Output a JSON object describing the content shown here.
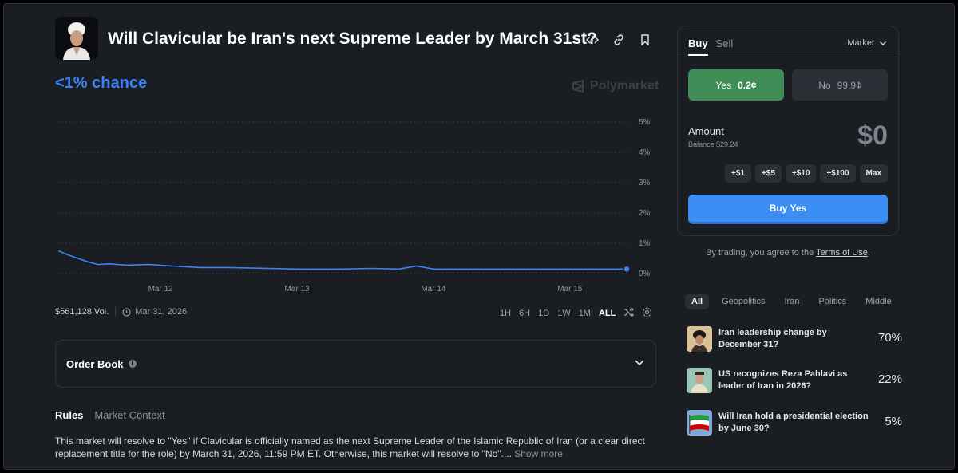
{
  "market": {
    "title": "Will Clavicular be Iran's next Supreme Leader by March 31st?",
    "chance": "<1% chance",
    "brand": "Polymarket",
    "volume": "$561,128 Vol.",
    "end_date": "Mar 31, 2026"
  },
  "chart_data": {
    "type": "line",
    "x_ticks": [
      "Mar 12",
      "Mar 13",
      "Mar 14",
      "Mar 15"
    ],
    "y_ticks": [
      "5%",
      "4%",
      "3%",
      "2%",
      "1%",
      "0%"
    ],
    "ylim": [
      0,
      5
    ],
    "series": [
      {
        "x": [
          0,
          0.02,
          0.05,
          0.07,
          0.09,
          0.12,
          0.16,
          0.2,
          0.25,
          0.3,
          0.35,
          0.42,
          0.5,
          0.55,
          0.6,
          0.63,
          0.66,
          0.7,
          0.75,
          0.8,
          0.85,
          0.9,
          0.95,
          1.0
        ],
        "values": [
          0.75,
          0.6,
          0.4,
          0.3,
          0.32,
          0.28,
          0.3,
          0.25,
          0.2,
          0.2,
          0.18,
          0.15,
          0.15,
          0.17,
          0.15,
          0.25,
          0.15,
          0.15,
          0.15,
          0.15,
          0.15,
          0.15,
          0.15,
          0.15
        ]
      }
    ],
    "color": "#3b82f6",
    "grid": true
  },
  "time_ranges": [
    "1H",
    "6H",
    "1D",
    "1W",
    "1M",
    "ALL"
  ],
  "active_range": "ALL",
  "order_book_label": "Order Book",
  "info_tabs": {
    "rules": "Rules",
    "context": "Market Context"
  },
  "rules_text": "This market will resolve to \"Yes\" if Clavicular is officially named as the next Supreme Leader of the Islamic Republic of Iran (or a clear direct replacement title for the role) by March 31, 2026, 11:59 PM ET. Otherwise, this market will resolve to \"No\"....",
  "show_more": "Show more",
  "trade": {
    "buy_tab": "Buy",
    "sell_tab": "Sell",
    "order_type": "Market",
    "yes_label": "Yes",
    "yes_price": "0.2¢",
    "no_label": "No",
    "no_price": "99.9¢",
    "amount_label": "Amount",
    "balance": "Balance $29.24",
    "amount_value": "$0",
    "quick_adds": [
      "+$1",
      "+$5",
      "+$10",
      "+$100",
      "Max"
    ],
    "buy_button": "Buy Yes",
    "terms_prefix": "By trading, you agree to the ",
    "terms_link": "Terms of Use",
    "terms_suffix": "."
  },
  "categories": [
    "All",
    "Geopolitics",
    "Iran",
    "Politics",
    "Middle"
  ],
  "related": [
    {
      "question": "Iran leadership change by December 31?",
      "pct": "70%"
    },
    {
      "question": "US recognizes Reza Pahlavi as leader of Iran in 2026?",
      "pct": "22%"
    },
    {
      "question": "Will Iran hold a presidential election by June 30?",
      "pct": "5%"
    }
  ],
  "colors": {
    "accent": "#3b82f6",
    "yes": "#3f8c57",
    "background": "#1a1d22"
  }
}
